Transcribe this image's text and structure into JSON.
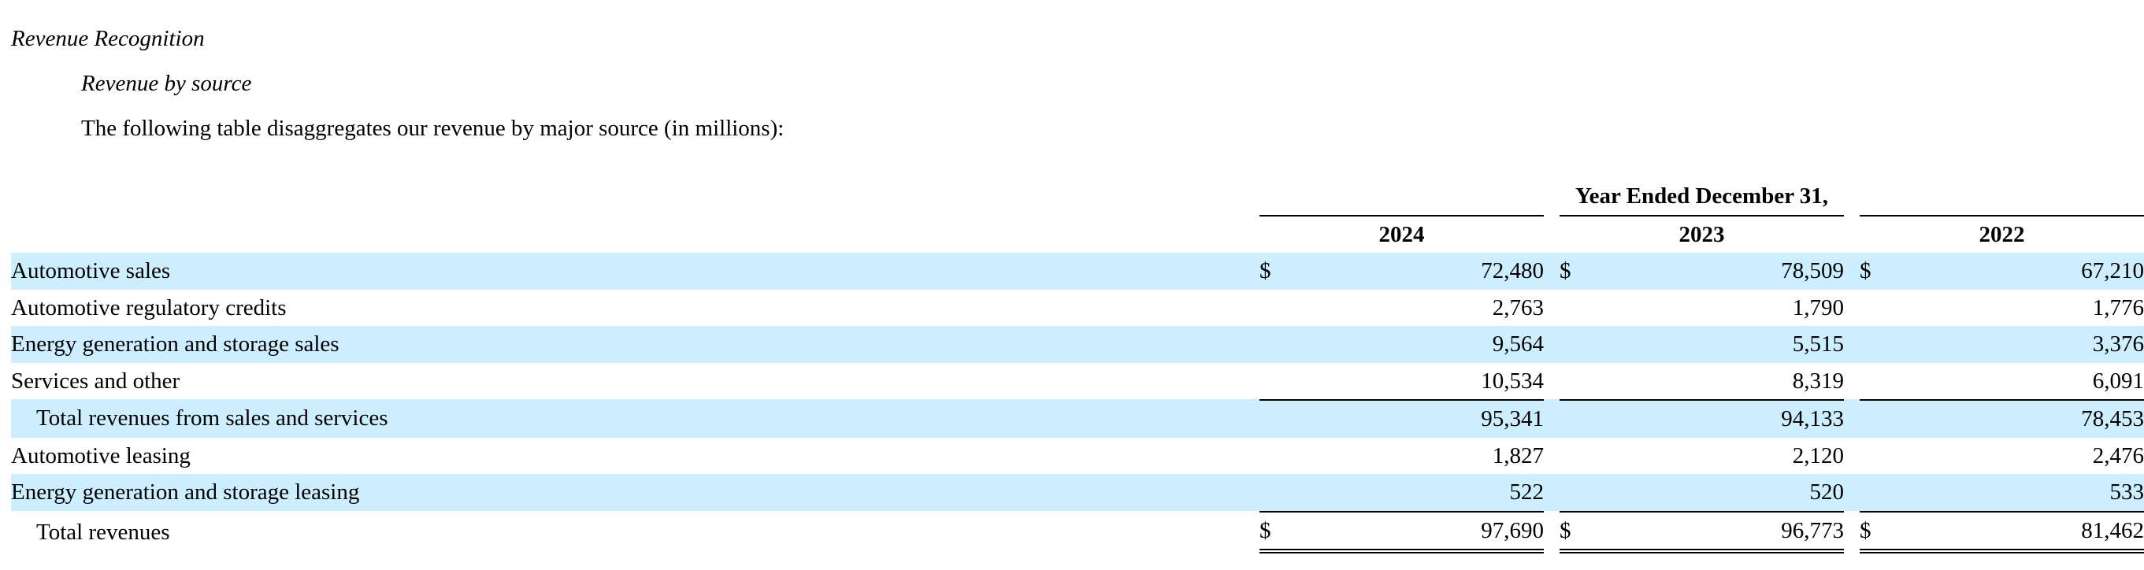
{
  "section_title": "Revenue Recognition",
  "subsection_title": "Revenue by source",
  "intro_text": "The following table disaggregates our revenue by major source (in millions):",
  "table": {
    "group_header": "Year Ended December 31,",
    "years": [
      "2024",
      "2023",
      "2022"
    ],
    "currency_symbol": "$",
    "rows": [
      {
        "label": "Automotive sales",
        "values": [
          "72,480",
          "78,509",
          "67,210"
        ]
      },
      {
        "label": "Automotive regulatory credits",
        "values": [
          "2,763",
          "1,790",
          "1,776"
        ]
      },
      {
        "label": "Energy generation and storage sales",
        "values": [
          "9,564",
          "5,515",
          "3,376"
        ]
      },
      {
        "label": "Services and other",
        "values": [
          "10,534",
          "8,319",
          "6,091"
        ]
      },
      {
        "label": "Total revenues from sales and services",
        "values": [
          "95,341",
          "94,133",
          "78,453"
        ]
      },
      {
        "label": "Automotive leasing",
        "values": [
          "1,827",
          "2,120",
          "2,476"
        ]
      },
      {
        "label": "Energy generation and storage leasing",
        "values": [
          "522",
          "520",
          "533"
        ]
      },
      {
        "label": "Total revenues",
        "values": [
          "97,690",
          "96,773",
          "81,462"
        ]
      }
    ]
  },
  "colors": {
    "row_shade": "#cceeff",
    "text": "#000000"
  }
}
